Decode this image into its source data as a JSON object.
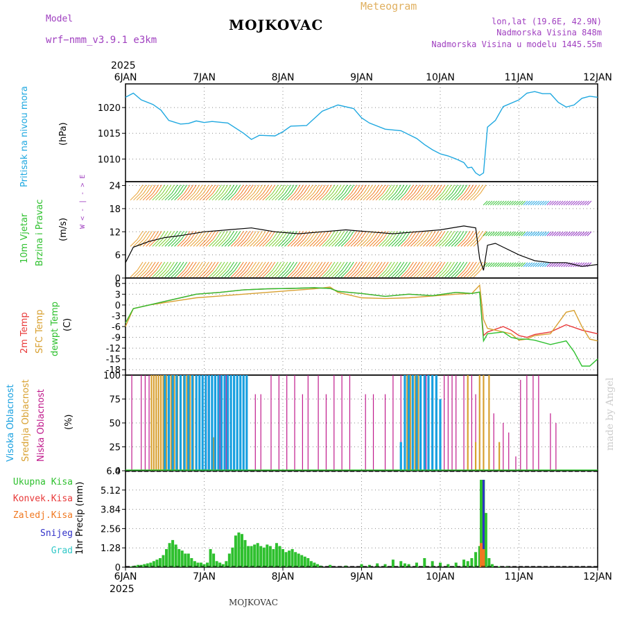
{
  "header": {
    "model_label": "Model",
    "model_name": "wrf−nmm_v3.9.1 e3km",
    "title": "MOJKOVAC",
    "meteogram": "Meteogram",
    "coords": "lon,lat (19.6E, 42.9N)",
    "elevation": "Nadmorska Visina 848m",
    "model_elevation": "Nadmorska Visina u modelu 1445.55m",
    "footer": "MOJKOVAC",
    "watermark": "made by Angel"
  },
  "colors": {
    "pressure": "#1fa8e0",
    "wind_speed": "#000000",
    "temp2m": "#e83838",
    "sfc": "#d8a030",
    "dewpt": "#2ec02e",
    "high_cloud": "#18a0e0",
    "mid_cloud": "#d8a030",
    "low_cloud": "#c01a8c",
    "total_precip": "#2ec02e",
    "conv_precip": "#e83838",
    "frozen": "#f07820",
    "snow": "#3030c8",
    "grad": "#30c8c8"
  },
  "chart_data": [
    {
      "type": "line",
      "panel": "pressure",
      "ylabel_1": "Pritisak na nivou mora",
      "ylabel_2": "(hPa)",
      "year": "2025",
      "x_ticks": [
        "6JAN",
        "7JAN",
        "8JAN",
        "9JAN",
        "10JAN",
        "11JAN",
        "12JAN"
      ],
      "ylim": [
        1005.6,
        1024.6
      ],
      "y_ticks": [
        1010,
        1015,
        1020
      ],
      "grid": true,
      "x": [
        0,
        0.1,
        0.2,
        0.35,
        0.45,
        0.55,
        0.7,
        0.8,
        0.9,
        1.0,
        1.1,
        1.3,
        1.5,
        1.6,
        1.7,
        1.9,
        2.0,
        2.1,
        2.3,
        2.5,
        2.7,
        2.9,
        3.0,
        3.1,
        3.3,
        3.5,
        3.7,
        3.8,
        3.9,
        4.0,
        4.1,
        4.2,
        4.3,
        4.35,
        4.4,
        4.45,
        4.5,
        4.55,
        4.6,
        4.7,
        4.8,
        5.0,
        5.1,
        5.2,
        5.3,
        5.4,
        5.5,
        5.6,
        5.7,
        5.8,
        5.9,
        6.0
      ],
      "values": [
        1022,
        1022.8,
        1021.5,
        1020.6,
        1019.5,
        1017.5,
        1016.8,
        1016.9,
        1017.4,
        1017.1,
        1017.3,
        1017.0,
        1015.0,
        1013.8,
        1014.6,
        1014.5,
        1015.3,
        1016.4,
        1016.5,
        1019.3,
        1020.5,
        1019.8,
        1018.0,
        1017.0,
        1015.8,
        1015.5,
        1014.0,
        1012.8,
        1011.8,
        1011.0,
        1010.6,
        1010.0,
        1009.3,
        1008.3,
        1008.4,
        1007.3,
        1006.8,
        1007.3,
        1016.2,
        1017.5,
        1020.2,
        1021.5,
        1022.8,
        1023.1,
        1022.7,
        1022.7,
        1021.0,
        1020.1,
        1020.5,
        1021.8,
        1022.2,
        1022.0
      ]
    },
    {
      "type": "line",
      "panel": "wind",
      "ylabel_1": "10m Vjetar",
      "ylabel_2": "Brzina i Pravac",
      "ylabel_3": "(m/s)",
      "compass": "W  < - | - >  E",
      "ylim": [
        0,
        25
      ],
      "y_ticks": [
        0,
        6,
        12,
        18,
        24
      ],
      "grid": true,
      "x": [
        0,
        0.1,
        0.3,
        0.5,
        0.7,
        1.0,
        1.3,
        1.6,
        1.9,
        2.2,
        2.5,
        2.8,
        3.1,
        3.4,
        3.7,
        4.0,
        4.3,
        4.45,
        4.5,
        4.55,
        4.6,
        4.7,
        4.8,
        5.0,
        5.2,
        5.4,
        5.6,
        5.8,
        6.0
      ],
      "values": [
        4,
        8,
        9.5,
        10.5,
        11,
        12,
        12.5,
        13,
        12,
        11.5,
        12,
        12.5,
        12,
        11.5,
        12,
        12.5,
        13.5,
        13,
        5,
        2,
        8.5,
        9,
        8,
        6,
        4.5,
        4,
        4,
        3,
        3.5
      ],
      "barb_rows": [
        {
          "y": 22,
          "x_end": 4.55
        },
        {
          "y": 10,
          "x_end": 4.55
        },
        {
          "y": 2,
          "x_end": 4.55
        }
      ],
      "barb_rows_after": [
        {
          "y": 20
        },
        {
          "y": 12
        },
        {
          "y": 4
        }
      ]
    },
    {
      "type": "line",
      "panel": "temperature",
      "ylabel_1": "2m Temp",
      "ylabel_2": "SFC Temp",
      "ylabel_3": "dewpt Temp",
      "ylabel_4": "(C)",
      "ylim": [
        -19.5,
        7.5
      ],
      "y_ticks": [
        6,
        3,
        0,
        -3,
        -6,
        -9,
        -12,
        -15,
        -18
      ],
      "grid": true,
      "series": [
        {
          "name": "2m Temp",
          "x": [
            0,
            0.1,
            0.3,
            0.6,
            0.9,
            1.2,
            1.5,
            1.8,
            2.1,
            2.4,
            2.6,
            2.7,
            3.0,
            3.3,
            3.6,
            3.9,
            4.2,
            4.4,
            4.5,
            4.55,
            4.6,
            4.8,
            4.9,
            5.0,
            5.1,
            5.2,
            5.4,
            5.6,
            5.8,
            6.0
          ],
          "values": [
            -5,
            -1,
            0,
            1.5,
            3,
            3.5,
            4.2,
            4.5,
            4.6,
            4.8,
            4.6,
            3.8,
            3.2,
            2.4,
            3,
            2.6,
            3.5,
            3.2,
            3.6,
            -8.5,
            -7.5,
            -6,
            -7,
            -8.5,
            -9,
            -8.2,
            -7.5,
            -5.5,
            -7,
            -8
          ]
        },
        {
          "name": "SFC Temp",
          "x": [
            0,
            0.1,
            0.3,
            0.6,
            0.9,
            1.2,
            1.5,
            1.8,
            2.1,
            2.4,
            2.6,
            2.7,
            3.0,
            3.3,
            3.6,
            3.9,
            4.2,
            4.4,
            4.5,
            4.55,
            4.6,
            4.8,
            4.9,
            5.0,
            5.1,
            5.2,
            5.4,
            5.6,
            5.7,
            5.8,
            5.9,
            6.0
          ],
          "values": [
            -6,
            -1,
            0,
            1,
            2,
            2.5,
            3,
            3.5,
            4,
            4.5,
            5,
            3.5,
            2,
            1.8,
            2,
            2.5,
            3,
            3.2,
            5.5,
            -4,
            -6.5,
            -7.5,
            -8,
            -9.8,
            -9.5,
            -8.5,
            -8,
            -2,
            -1.5,
            -6,
            -9.5,
            -10
          ]
        },
        {
          "name": "dewpt Temp",
          "x": [
            0,
            0.1,
            0.3,
            0.6,
            0.9,
            1.2,
            1.5,
            1.8,
            2.1,
            2.4,
            2.6,
            2.7,
            3.0,
            3.3,
            3.6,
            3.9,
            4.2,
            4.4,
            4.5,
            4.55,
            4.6,
            4.8,
            4.9,
            5.0,
            5.1,
            5.2,
            5.4,
            5.6,
            5.7,
            5.8,
            5.9,
            6.0
          ],
          "values": [
            -5,
            -1,
            0,
            1.5,
            3,
            3.5,
            4.2,
            4.5,
            4.6,
            4.8,
            4.6,
            3.8,
            3.2,
            2.4,
            3,
            2.6,
            3.5,
            3.2,
            3.6,
            -10,
            -8,
            -7.5,
            -9,
            -9.5,
            -9.5,
            -9.8,
            -11,
            -10,
            -13,
            -17,
            -17,
            -15
          ]
        }
      ]
    },
    {
      "type": "bar",
      "panel": "clouds",
      "ylabel_1": "Visoka Oblacnost",
      "ylabel_2": "Srednja Oblacnost",
      "ylabel_3": "Niska Oblacnost",
      "ylabel_4": "(%)",
      "ylim": [
        0,
        100
      ],
      "y_ticks": [
        0,
        25,
        50,
        75,
        100
      ],
      "grid": true,
      "series": [
        {
          "name": "Niska Oblacnost",
          "x": [
            0.08,
            0.2,
            0.25,
            0.3,
            0.36,
            0.42,
            0.5,
            0.55,
            0.62,
            0.7,
            0.8,
            0.9,
            1.05,
            1.2,
            1.28,
            1.42,
            1.65,
            1.72,
            1.85,
            1.95,
            2.05,
            2.15,
            2.25,
            2.32,
            2.45,
            2.55,
            2.65,
            2.75,
            2.85,
            3.05,
            3.15,
            3.3,
            3.4,
            3.5,
            3.62,
            3.72,
            3.82,
            4.05,
            4.1,
            4.15,
            4.2,
            4.3,
            4.4,
            4.45,
            4.62,
            4.68,
            4.8,
            4.87,
            4.96,
            5.02,
            5.1,
            5.18,
            5.25,
            5.4,
            5.47
          ],
          "values": [
            100,
            100,
            100,
            100,
            100,
            100,
            100,
            100,
            100,
            100,
            100,
            100,
            100,
            100,
            100,
            100,
            80,
            80,
            100,
            100,
            100,
            100,
            80,
            100,
            100,
            80,
            100,
            100,
            100,
            80,
            80,
            80,
            100,
            100,
            100,
            100,
            100,
            100,
            100,
            100,
            100,
            100,
            100,
            80,
            60,
            60,
            50,
            40,
            15,
            95,
            100,
            100,
            100,
            60,
            50
          ]
        },
        {
          "name": "Srednja Oblacnost",
          "x": [
            0.33,
            0.36,
            0.39,
            0.42,
            0.45,
            0.48,
            0.52,
            0.55,
            0.58,
            0.62,
            0.66,
            0.7,
            0.74,
            0.78,
            0.82,
            0.86,
            0.9,
            0.94,
            0.98,
            1.02,
            1.06,
            1.12,
            3.55,
            3.58,
            3.62,
            3.65,
            3.68,
            3.72,
            4.35,
            4.45,
            4.5,
            4.55,
            4.62,
            4.75
          ],
          "values": [
            100,
            100,
            100,
            100,
            100,
            100,
            100,
            100,
            100,
            100,
            100,
            100,
            100,
            100,
            100,
            100,
            100,
            100,
            100,
            100,
            35,
            35,
            40,
            100,
            100,
            100,
            100,
            100,
            100,
            30,
            100,
            100,
            100,
            30
          ]
        },
        {
          "name": "Visoka Oblacnost",
          "x": [
            0.5,
            0.55,
            0.6,
            0.65,
            0.7,
            0.75,
            0.8,
            0.85,
            0.9,
            0.94,
            0.98,
            1.02,
            1.06,
            1.1,
            1.14,
            1.18,
            1.22,
            1.26,
            1.3,
            1.34,
            1.38,
            1.42,
            1.46,
            1.5,
            1.54,
            3.5,
            3.55,
            3.6,
            3.65,
            3.7,
            3.75,
            3.8,
            3.85,
            3.9,
            3.95,
            4.0
          ],
          "values": [
            100,
            100,
            100,
            100,
            100,
            100,
            100,
            100,
            100,
            100,
            100,
            100,
            100,
            100,
            100,
            100,
            100,
            100,
            100,
            100,
            100,
            100,
            100,
            100,
            100,
            30,
            100,
            100,
            100,
            100,
            100,
            100,
            100,
            100,
            100,
            75
          ]
        }
      ]
    },
    {
      "type": "bar",
      "panel": "precipitation",
      "ylabel_1": "1hr Precip (mm)",
      "legend": [
        "Ukupna Kisa",
        "Konvek.Kisa",
        "Zaledj.Kisa",
        "Snijeg",
        "Grad"
      ],
      "ylim": [
        0,
        6.4
      ],
      "y_ticks": [
        0,
        1.28,
        2.56,
        3.84,
        5.12,
        6.4
      ],
      "y_tick_labels": [
        "0",
        "1.28",
        "2.56",
        "3.84",
        "5.12",
        "6.4"
      ],
      "grid": true,
      "x": [
        0.08,
        0.12,
        0.16,
        0.2,
        0.24,
        0.28,
        0.32,
        0.36,
        0.4,
        0.44,
        0.48,
        0.52,
        0.56,
        0.6,
        0.64,
        0.68,
        0.72,
        0.76,
        0.8,
        0.84,
        0.88,
        0.92,
        0.96,
        1.0,
        1.04,
        1.08,
        1.12,
        1.16,
        1.2,
        1.24,
        1.28,
        1.32,
        1.36,
        1.4,
        1.44,
        1.48,
        1.52,
        1.56,
        1.6,
        1.64,
        1.68,
        1.72,
        1.76,
        1.8,
        1.84,
        1.88,
        1.92,
        1.96,
        2.0,
        2.04,
        2.08,
        2.12,
        2.16,
        2.2,
        2.24,
        2.28,
        2.32,
        2.36,
        2.4,
        2.44,
        2.48,
        2.6,
        2.8,
        3.0,
        3.1,
        3.2,
        3.3,
        3.4,
        3.5,
        3.55,
        3.6,
        3.7,
        3.8,
        3.9,
        4.0,
        4.1,
        4.2,
        4.3,
        4.35,
        4.4,
        4.45,
        4.5,
        4.52,
        4.55,
        4.58,
        4.62,
        4.66,
        4.75,
        4.85
      ],
      "values": [
        0.05,
        0.1,
        0.15,
        0.15,
        0.2,
        0.25,
        0.3,
        0.4,
        0.5,
        0.6,
        0.8,
        1.2,
        1.6,
        1.8,
        1.5,
        1.2,
        1.1,
        0.9,
        0.9,
        0.6,
        0.4,
        0.3,
        0.3,
        0.2,
        0.3,
        1.2,
        0.9,
        0.4,
        0.3,
        0.2,
        0.4,
        0.9,
        1.3,
        2.1,
        2.3,
        2.2,
        1.8,
        1.4,
        1.4,
        1.5,
        1.6,
        1.4,
        1.3,
        1.5,
        1.4,
        1.2,
        1.6,
        1.4,
        1.2,
        1.0,
        1.1,
        1.2,
        1.0,
        0.9,
        0.8,
        0.7,
        0.6,
        0.4,
        0.3,
        0.2,
        0.1,
        0.15,
        0.1,
        0.2,
        0.15,
        0.25,
        0.2,
        0.5,
        0.4,
        0.25,
        0.2,
        0.3,
        0.6,
        0.4,
        0.3,
        0.2,
        0.3,
        0.5,
        0.4,
        0.6,
        1.0,
        1.4,
        5.8,
        5.8,
        3.6,
        0.6,
        0.2,
        0.05,
        0.02
      ],
      "conv_x": [
        4.52,
        4.55
      ],
      "conv_values": [
        1.6,
        1.2
      ],
      "snow_x": [
        4.55
      ],
      "snow_values": [
        5.8
      ]
    }
  ]
}
